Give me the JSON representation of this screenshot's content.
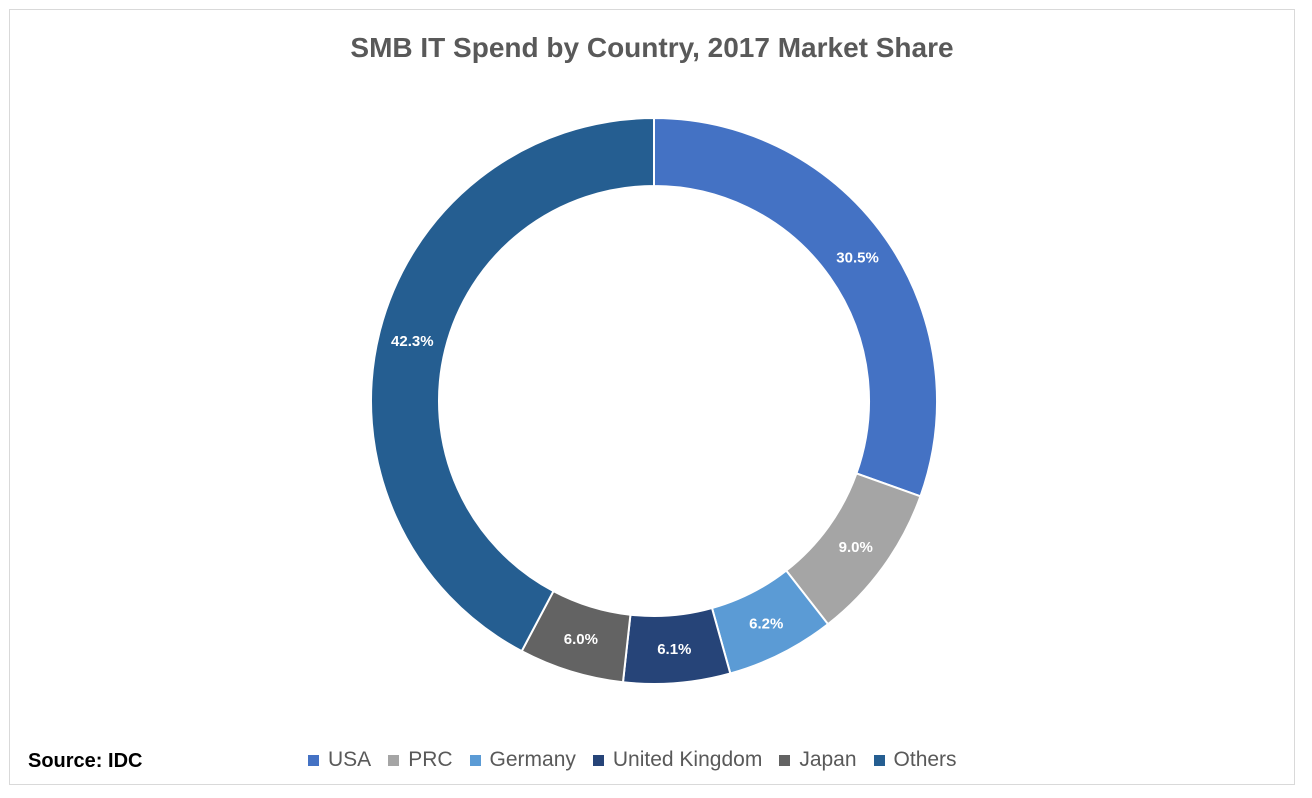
{
  "title": "SMB IT Spend by Country, 2017 Market Share",
  "source": "Source: IDC",
  "chart_data": {
    "type": "pie",
    "donut": true,
    "title": "SMB IT Spend by Country, 2017 Market Share",
    "legend_position": "bottom",
    "slices": [
      {
        "label": "USA",
        "value": 30.5,
        "display": "30.5%",
        "color": "#4472C4"
      },
      {
        "label": "PRC",
        "value": 9.0,
        "display": "9.0%",
        "color": "#A5A5A5"
      },
      {
        "label": "Germany",
        "value": 6.2,
        "display": "6.2%",
        "color": "#5B9BD5"
      },
      {
        "label": "United Kingdom",
        "value": 6.1,
        "display": "6.1%",
        "color": "#264478"
      },
      {
        "label": "Japan",
        "value": 6.0,
        "display": "6.0%",
        "color": "#636363"
      },
      {
        "label": "Others",
        "value": 42.3,
        "display": "42.3%",
        "color": "#255E91"
      }
    ]
  }
}
